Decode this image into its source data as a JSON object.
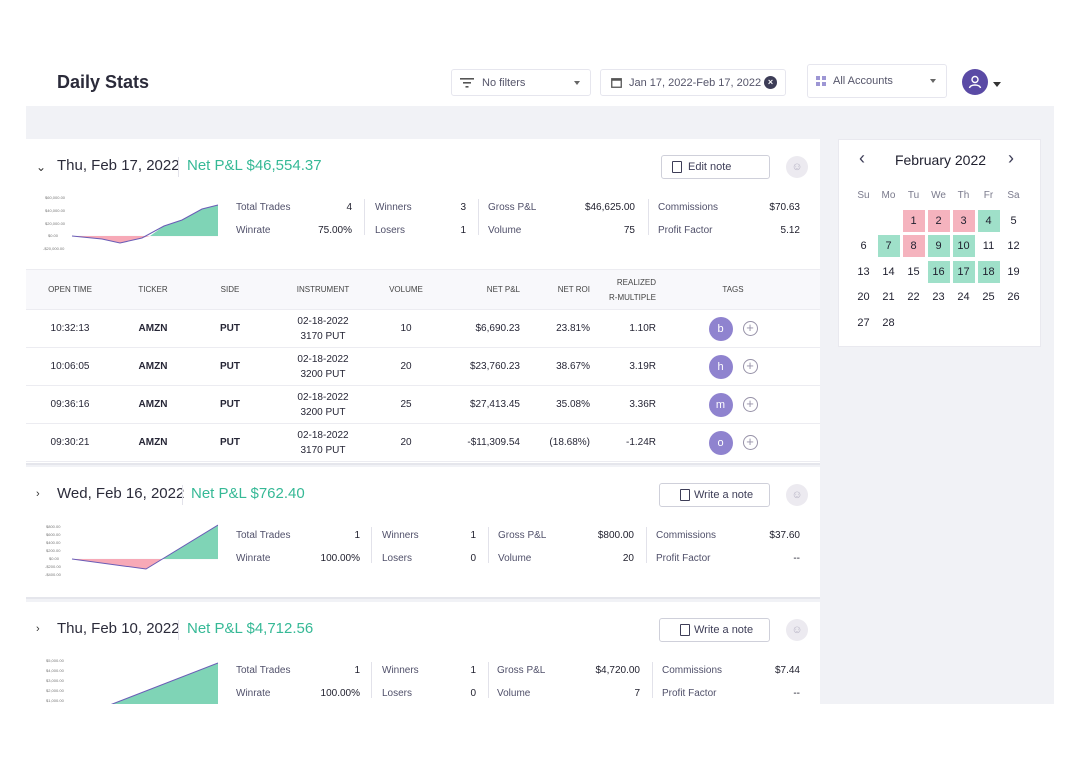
{
  "header": {
    "title": "Daily Stats",
    "filters_label": "No filters",
    "date_range": "Jan 17, 2022-Feb 17, 2022",
    "accounts_label": "All Accounts"
  },
  "colors": {
    "positive": "#36b996",
    "negative": "#e6546b",
    "accent": "#5a4aa5",
    "tag": "#8f83cf"
  },
  "days": [
    {
      "title": "Thu, Feb 17, 2022",
      "net_pnl": "Net P&L $46,554.37",
      "note_label": "Edit note",
      "spark_ticks": [
        "$60,000.00",
        "$40,000.00",
        "$20,000.00",
        "$0.00",
        "-$20,000.00"
      ],
      "stats": {
        "total_trades_label": "Total Trades",
        "total_trades": "4",
        "winrate_label": "Winrate",
        "winrate": "75.00%",
        "winners_label": "Winners",
        "winners": "3",
        "losers_label": "Losers",
        "losers": "1",
        "gross_label": "Gross P&L",
        "gross": "$46,625.00",
        "volume_label": "Volume",
        "volume": "75",
        "commissions_label": "Commissions",
        "commissions": "$70.63",
        "pf_label": "Profit Factor",
        "pf": "5.12"
      }
    },
    {
      "title": "Wed, Feb 16, 2022",
      "net_pnl": "Net P&L $762.40",
      "note_label": "Write a note",
      "spark_ticks": [
        "$800.00",
        "$600.00",
        "$400.00",
        "$200.00",
        "$0.00",
        "-$200.00",
        "-$400.00"
      ],
      "stats": {
        "total_trades_label": "Total Trades",
        "total_trades": "1",
        "winrate_label": "Winrate",
        "winrate": "100.00%",
        "winners_label": "Winners",
        "winners": "1",
        "losers_label": "Losers",
        "losers": "0",
        "gross_label": "Gross P&L",
        "gross": "$800.00",
        "volume_label": "Volume",
        "volume": "20",
        "commissions_label": "Commissions",
        "commissions": "$37.60",
        "pf_label": "Profit Factor",
        "pf": "--"
      }
    },
    {
      "title": "Thu, Feb 10, 2022",
      "net_pnl": "Net P&L $4,712.56",
      "note_label": "Write a note",
      "spark_ticks": [
        "$5,000.00",
        "$4,000.00",
        "$3,000.00",
        "$2,000.00",
        "$1,000.00"
      ],
      "stats": {
        "total_trades_label": "Total Trades",
        "total_trades": "1",
        "winrate_label": "Winrate",
        "winrate": "100.00%",
        "winners_label": "Winners",
        "winners": "1",
        "losers_label": "Losers",
        "losers": "0",
        "gross_label": "Gross P&L",
        "gross": "$4,720.00",
        "volume_label": "Volume",
        "volume": "7",
        "commissions_label": "Commissions",
        "commissions": "$7.44",
        "pf_label": "Profit Factor",
        "pf": "--"
      }
    }
  ],
  "trades_table": {
    "columns": [
      "OPEN TIME",
      "TICKER",
      "SIDE",
      "INSTRUMENT",
      "VOLUME",
      "NET P&L",
      "NET ROI",
      "REALIZED",
      "R-MULTIPLE",
      "TAGS"
    ],
    "rows": [
      {
        "time": "10:32:13",
        "ticker": "AMZN",
        "side": "PUT",
        "inst1": "02-18-2022",
        "inst2": "3170 PUT",
        "volume": "10",
        "pnl": "$6,690.23",
        "roi": "23.81%",
        "r": "1.10R",
        "tag": "b"
      },
      {
        "time": "10:06:05",
        "ticker": "AMZN",
        "side": "PUT",
        "inst1": "02-18-2022",
        "inst2": "3200 PUT",
        "volume": "20",
        "pnl": "$23,760.23",
        "roi": "38.67%",
        "r": "3.19R",
        "tag": "h"
      },
      {
        "time": "09:36:16",
        "ticker": "AMZN",
        "side": "PUT",
        "inst1": "02-18-2022",
        "inst2": "3200 PUT",
        "volume": "25",
        "pnl": "$27,413.45",
        "roi": "35.08%",
        "r": "3.36R",
        "tag": "m"
      },
      {
        "time": "09:30:21",
        "ticker": "AMZN",
        "side": "PUT",
        "inst1": "02-18-2022",
        "inst2": "3170 PUT",
        "volume": "20",
        "pnl": "-$11,309.54",
        "roi": "(18.68%)",
        "r": "-1.24R",
        "tag": "o"
      }
    ]
  },
  "calendar": {
    "month": "February 2022",
    "weekdays": [
      "Su",
      "Mo",
      "Tu",
      "We",
      "Th",
      "Fr",
      "Sa"
    ],
    "days": [
      {
        "d": "",
        "s": ""
      },
      {
        "d": "",
        "s": ""
      },
      {
        "d": "1",
        "s": "red"
      },
      {
        "d": "2",
        "s": "red"
      },
      {
        "d": "3",
        "s": "red"
      },
      {
        "d": "4",
        "s": "green"
      },
      {
        "d": "5",
        "s": ""
      },
      {
        "d": "6",
        "s": ""
      },
      {
        "d": "7",
        "s": "green"
      },
      {
        "d": "8",
        "s": "red"
      },
      {
        "d": "9",
        "s": "green"
      },
      {
        "d": "10",
        "s": "green"
      },
      {
        "d": "11",
        "s": ""
      },
      {
        "d": "12",
        "s": ""
      },
      {
        "d": "13",
        "s": ""
      },
      {
        "d": "14",
        "s": ""
      },
      {
        "d": "15",
        "s": ""
      },
      {
        "d": "16",
        "s": "green"
      },
      {
        "d": "17",
        "s": "green"
      },
      {
        "d": "18",
        "s": "green"
      },
      {
        "d": "19",
        "s": ""
      },
      {
        "d": "20",
        "s": ""
      },
      {
        "d": "21",
        "s": ""
      },
      {
        "d": "22",
        "s": ""
      },
      {
        "d": "23",
        "s": ""
      },
      {
        "d": "24",
        "s": ""
      },
      {
        "d": "25",
        "s": ""
      },
      {
        "d": "26",
        "s": ""
      },
      {
        "d": "27",
        "s": ""
      },
      {
        "d": "28",
        "s": ""
      }
    ]
  }
}
